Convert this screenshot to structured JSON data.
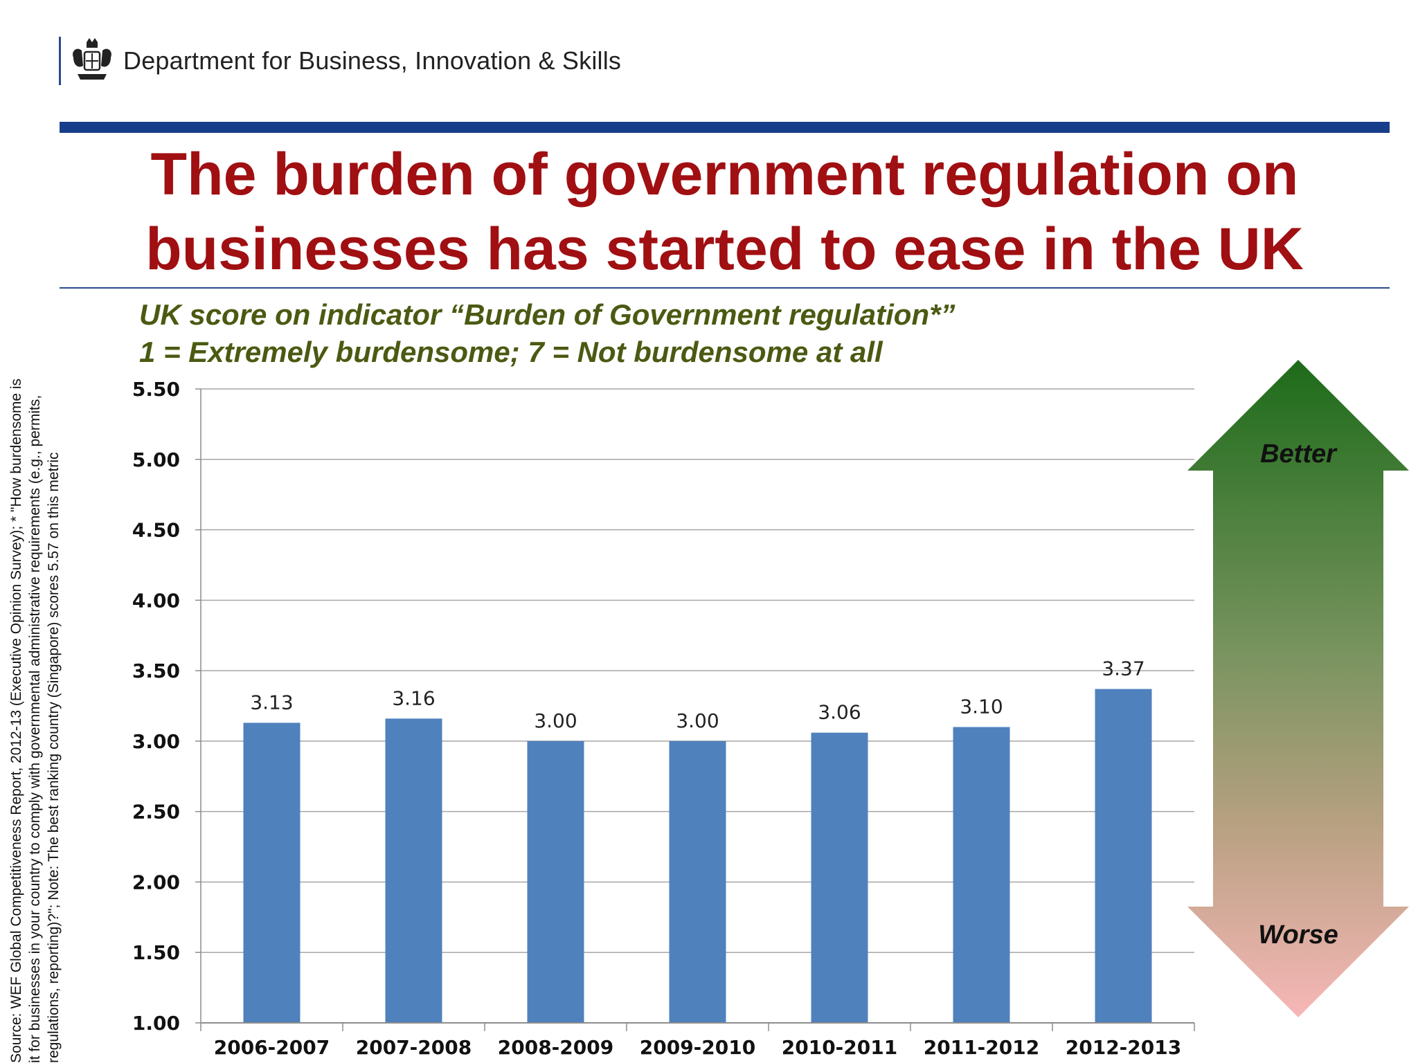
{
  "header": {
    "department": "Department for Business, Innovation & Skills",
    "crest_icon": "royal-coat-of-arms-icon"
  },
  "title": {
    "line1": "The burden of government regulation on",
    "line2": "businesses has started to ease in the UK"
  },
  "subtitle": {
    "line1": "UK score on indicator “Burden of Government regulation*”",
    "line2": "1 = Extremely burdensome; 7 = Not burdensome at all"
  },
  "source_note": {
    "line1": "Source:  WEF Global Competitiveness Report, 2012-13 (Executive Opinion Survey); * \"How burdensome is",
    "line2": "it for businesses in your country to comply with governmental administrative requirements (e.g., permits,",
    "line3": "regulations, reporting)?\"; Note: The best ranking country (Singapore) scores 5.57 on this metric"
  },
  "arrow": {
    "top_label": "Better",
    "bottom_label": "Worse",
    "top_color": "#1d6b1a",
    "bottom_color": "#f7b7b7"
  },
  "colors": {
    "title": "#a00f12",
    "subtitle": "#4a5a12",
    "bar": "#4f81bd",
    "top_bar": "#173e8a"
  },
  "chart_data": {
    "type": "bar",
    "categories": [
      "2006-2007",
      "2007-2008",
      "2008-2009",
      "2009-2010",
      "2010-2011",
      "2011-2012",
      "2012-2013"
    ],
    "values": [
      3.13,
      3.16,
      3.0,
      3.0,
      3.06,
      3.1,
      3.37
    ],
    "data_labels": [
      "3.13",
      "3.16",
      "3.00",
      "3.00",
      "3.06",
      "3.10",
      "3.37"
    ],
    "ylim": [
      1.0,
      5.5
    ],
    "yticks": [
      "1.00",
      "1.50",
      "2.00",
      "2.50",
      "3.00",
      "3.50",
      "4.00",
      "4.50",
      "5.00",
      "5.50"
    ],
    "grid": true,
    "legend": "none"
  }
}
